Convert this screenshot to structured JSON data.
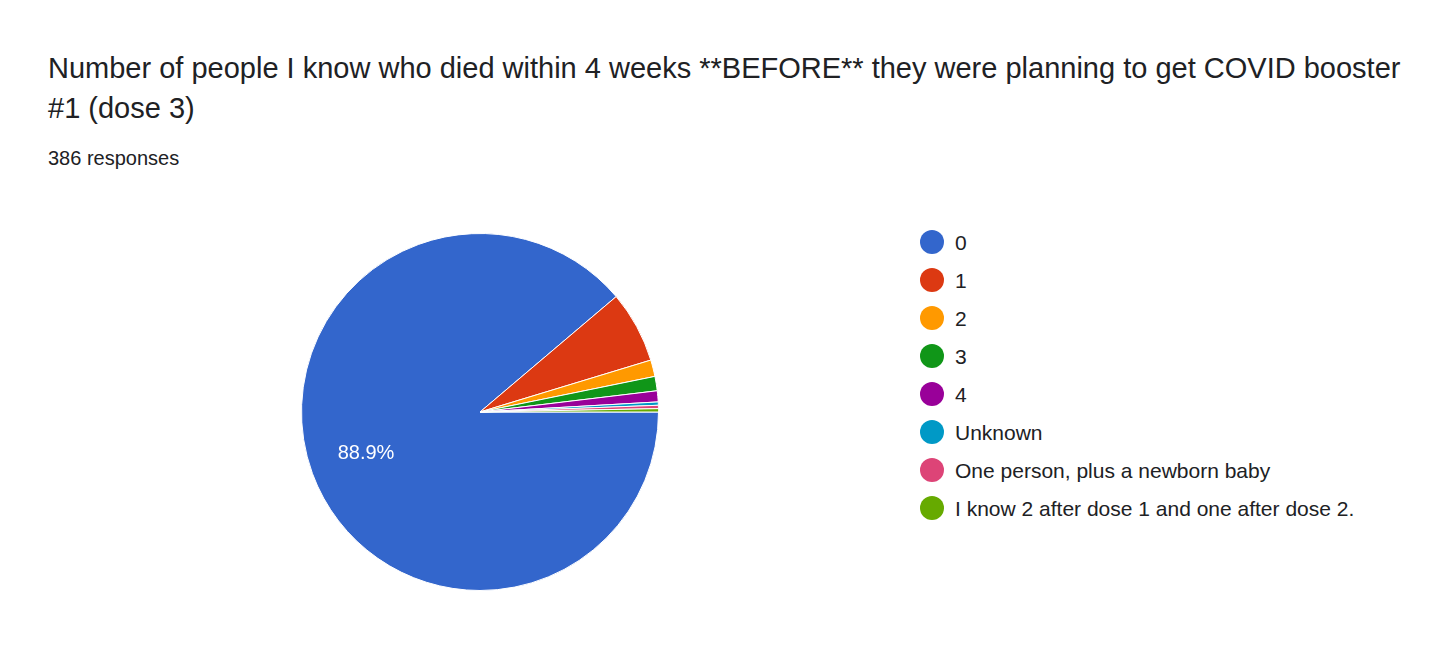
{
  "chart_data": {
    "type": "pie",
    "title": "Number of people I know who died within 4 weeks **BEFORE** they were planning to get COVID booster #1 (dose 3)",
    "subtitle": "386 responses",
    "categories": [
      "0",
      "1",
      "2",
      "3",
      "4",
      "Unknown",
      "One person, plus a newborn baby",
      "I know 2 after dose 1 and one after dose 2."
    ],
    "values": [
      88.9,
      6.5,
      1.5,
      1.3,
      1.0,
      0.3,
      0.3,
      0.3
    ],
    "value_labels": [
      "88.9%",
      null,
      null,
      null,
      null,
      null,
      null,
      null
    ],
    "colors": [
      "#3366cc",
      "#dc3912",
      "#ff9900",
      "#109618",
      "#990099",
      "#0099c6",
      "#dd4477",
      "#66aa00"
    ],
    "data_labels": true,
    "legend": "right"
  }
}
